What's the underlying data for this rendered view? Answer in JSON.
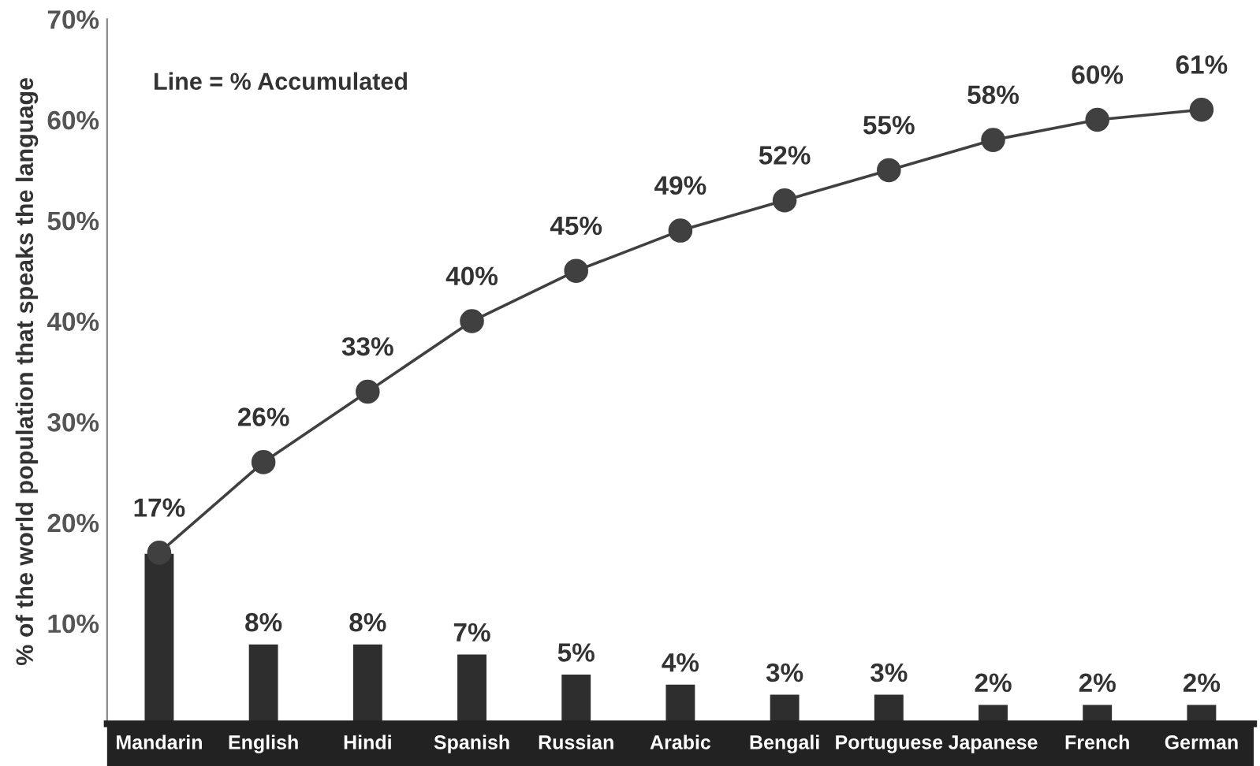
{
  "chart_data": {
    "type": "bar",
    "ylabel": "% of the world population that speaks the language",
    "categories": [
      "Mandarin",
      "English",
      "Hindi",
      "Spanish",
      "Russian",
      "Arabic",
      "Bengali",
      "Portuguese",
      "Japanese",
      "French",
      "German"
    ],
    "series": [
      {
        "color": "#2e2e2e",
        "values": [
          17,
          8,
          8,
          7,
          5,
          4,
          3,
          3,
          2,
          2,
          2
        ],
        "value_labels": [
          null,
          "8%",
          "8%",
          "7%",
          "5%",
          "4%",
          "3%",
          "3%",
          "2%",
          "2%",
          "2%"
        ]
      },
      {
        "type": "line",
        "color": "#404040",
        "marker": "circle",
        "line_style": "solid",
        "values": [
          17,
          26,
          33,
          40,
          45,
          49,
          52,
          55,
          58,
          60,
          61
        ],
        "value_labels": [
          "17%",
          "26%",
          "33%",
          "40%",
          "45%",
          "49%",
          "52%",
          "55%",
          "58%",
          "60%",
          "61%"
        ]
      }
    ],
    "ylim": [
      0,
      70
    ],
    "yticks": [
      {
        "value": 10,
        "label": "10%"
      },
      {
        "value": 20,
        "label": "20%"
      },
      {
        "value": 30,
        "label": "30%"
      },
      {
        "value": 40,
        "label": "40%"
      },
      {
        "value": 50,
        "label": "50%"
      },
      {
        "value": 60,
        "label": "60%"
      },
      {
        "value": 70,
        "label": "70%"
      }
    ],
    "annotations": [
      "Line = % Accumulated"
    ],
    "grid": false,
    "legend": false
  }
}
